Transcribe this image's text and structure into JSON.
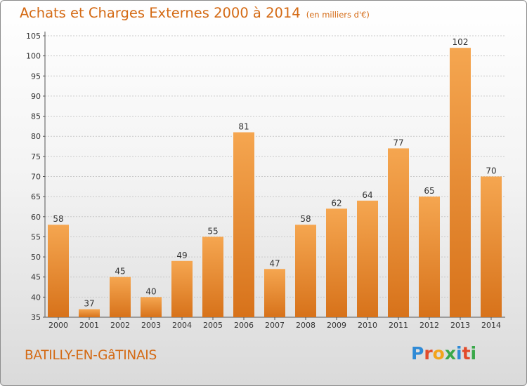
{
  "title": "Achats et Charges Externes 2000 à 2014",
  "unit_note": "(en milliers d'€)",
  "commune": "BATILLY-EN-GâTINAIS",
  "brand": "Proxiti",
  "colors": {
    "accent": "#d46a14",
    "bar_top": "#f5a650",
    "bar_bottom": "#d7721a",
    "logo": [
      "#2f8ad6",
      "#e24b2b",
      "#f2a41b",
      "#3aa84a",
      "#2f8ad6",
      "#e24b2b",
      "#3aa84a"
    ]
  },
  "chart_data": {
    "type": "bar",
    "title": "Achats et Charges Externes 2000 à 2014",
    "ylabel": "(en milliers d'€)",
    "xlabel": "",
    "categories": [
      "2000",
      "2001",
      "2002",
      "2003",
      "2004",
      "2005",
      "2006",
      "2007",
      "2008",
      "2009",
      "2010",
      "2011",
      "2012",
      "2013",
      "2014"
    ],
    "values": [
      58,
      37,
      45,
      40,
      49,
      55,
      81,
      47,
      58,
      62,
      64,
      77,
      65,
      102,
      70
    ],
    "ylim": [
      35,
      105
    ],
    "yticks": [
      35,
      40,
      45,
      50,
      55,
      60,
      65,
      70,
      75,
      80,
      85,
      90,
      95,
      100,
      105
    ],
    "grid": true,
    "data_labels": true
  }
}
